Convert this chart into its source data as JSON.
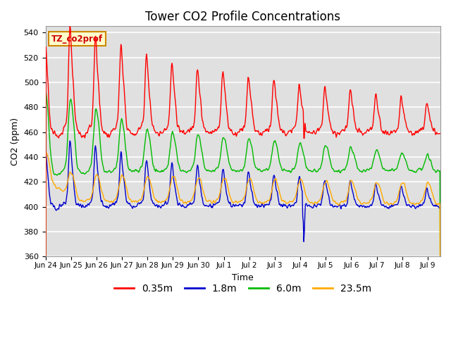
{
  "title": "Tower CO2 Profile Concentrations",
  "xlabel": "Time",
  "ylabel": "CO2 (ppm)",
  "ylim": [
    360,
    545
  ],
  "yticks": [
    360,
    380,
    400,
    420,
    440,
    460,
    480,
    500,
    520,
    540
  ],
  "legend_label": "TZ_co2prof",
  "series_labels": [
    "0.35m",
    "1.8m",
    "6.0m",
    "23.5m"
  ],
  "series_colors": [
    "#ff0000",
    "#0000cc",
    "#00bb00",
    "#ffaa00"
  ],
  "background_color": "#ffffff",
  "plot_bg_color": "#e0e0e0",
  "grid_color": "#ffffff",
  "title_fontsize": 12,
  "axis_fontsize": 9,
  "legend_fontsize": 10
}
